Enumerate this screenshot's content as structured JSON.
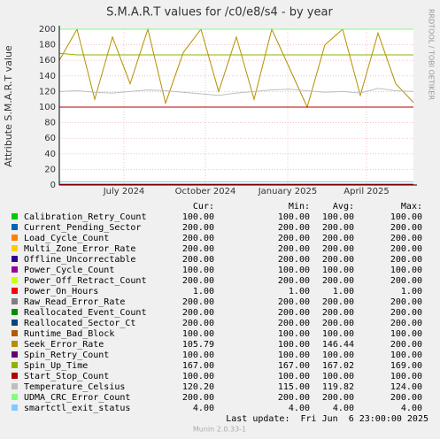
{
  "chart_data": {
    "type": "line",
    "title": "S.M.A.R.T values for /c0/e8/s4 - by year",
    "y_label": "Attribute S.M.A.R.T value",
    "side_text": "RRDTOOL / TOBI OETIKER",
    "x": [
      0,
      1,
      2,
      3,
      4,
      5,
      6,
      7,
      8,
      9,
      10,
      11,
      12,
      13,
      14,
      15,
      16,
      17,
      18,
      19,
      20
    ],
    "xlim": [
      0,
      20
    ],
    "xticks": [
      {
        "value": 3.65,
        "label": "July 2024"
      },
      {
        "value": 8.25,
        "label": "October 2024"
      },
      {
        "value": 12.9,
        "label": "January 2025"
      },
      {
        "value": 17.35,
        "label": "April 2025"
      }
    ],
    "ylim": [
      0,
      200
    ],
    "yticks": [
      0,
      20,
      40,
      60,
      80,
      100,
      120,
      140,
      160,
      180,
      200
    ],
    "grid": true,
    "series": [
      {
        "name": "Calibration_Retry_Count",
        "color": "#00CC00",
        "values": [
          100,
          100,
          100,
          100,
          100,
          100,
          100,
          100,
          100,
          100,
          100,
          100,
          100,
          100,
          100,
          100,
          100,
          100,
          100,
          100,
          100
        ]
      },
      {
        "name": "Current_Pending_Sector",
        "color": "#0066B3",
        "values": [
          200,
          200,
          200,
          200,
          200,
          200,
          200,
          200,
          200,
          200,
          200,
          200,
          200,
          200,
          200,
          200,
          200,
          200,
          200,
          200,
          200
        ]
      },
      {
        "name": "Load_Cycle_Count",
        "color": "#FF8000",
        "values": [
          200,
          200,
          200,
          200,
          200,
          200,
          200,
          200,
          200,
          200,
          200,
          200,
          200,
          200,
          200,
          200,
          200,
          200,
          200,
          200,
          200
        ]
      },
      {
        "name": "Multi_Zone_Error_Rate",
        "color": "#FFCC00",
        "values": [
          200,
          200,
          200,
          200,
          200,
          200,
          200,
          200,
          200,
          200,
          200,
          200,
          200,
          200,
          200,
          200,
          200,
          200,
          200,
          200,
          200
        ]
      },
      {
        "name": "Offline_Uncorrectable",
        "color": "#330099",
        "values": [
          200,
          200,
          200,
          200,
          200,
          200,
          200,
          200,
          200,
          200,
          200,
          200,
          200,
          200,
          200,
          200,
          200,
          200,
          200,
          200,
          200
        ]
      },
      {
        "name": "Power_Cycle_Count",
        "color": "#990099",
        "values": [
          100,
          100,
          100,
          100,
          100,
          100,
          100,
          100,
          100,
          100,
          100,
          100,
          100,
          100,
          100,
          100,
          100,
          100,
          100,
          100,
          100
        ]
      },
      {
        "name": "Power_Off_Retract_Count",
        "color": "#CCFF00",
        "values": [
          200,
          200,
          200,
          200,
          200,
          200,
          200,
          200,
          200,
          200,
          200,
          200,
          200,
          200,
          200,
          200,
          200,
          200,
          200,
          200,
          200
        ]
      },
      {
        "name": "Power_On_Hours",
        "color": "#FF0000",
        "values": [
          1,
          1,
          1,
          1,
          1,
          1,
          1,
          1,
          1,
          1,
          1,
          1,
          1,
          1,
          1,
          1,
          1,
          1,
          1,
          1,
          1
        ]
      },
      {
        "name": "Raw_Read_Error_Rate",
        "color": "#808080",
        "values": [
          200,
          200,
          200,
          200,
          200,
          200,
          200,
          200,
          200,
          200,
          200,
          200,
          200,
          200,
          200,
          200,
          200,
          200,
          200,
          200,
          200
        ]
      },
      {
        "name": "Reallocated_Event_Count",
        "color": "#008F00",
        "values": [
          200,
          200,
          200,
          200,
          200,
          200,
          200,
          200,
          200,
          200,
          200,
          200,
          200,
          200,
          200,
          200,
          200,
          200,
          200,
          200,
          200
        ]
      },
      {
        "name": "Reallocated_Sector_Ct",
        "color": "#00487D",
        "values": [
          200,
          200,
          200,
          200,
          200,
          200,
          200,
          200,
          200,
          200,
          200,
          200,
          200,
          200,
          200,
          200,
          200,
          200,
          200,
          200,
          200
        ]
      },
      {
        "name": "Runtime_Bad_Block",
        "color": "#B35A00",
        "values": [
          100,
          100,
          100,
          100,
          100,
          100,
          100,
          100,
          100,
          100,
          100,
          100,
          100,
          100,
          100,
          100,
          100,
          100,
          100,
          100,
          100
        ]
      },
      {
        "name": "Seek_Error_Rate",
        "color": "#B38F00",
        "values": [
          160,
          200,
          110,
          190,
          130,
          200,
          105,
          170,
          200,
          120,
          190,
          110,
          200,
          150,
          100,
          180,
          200,
          115,
          195,
          130,
          106
        ]
      },
      {
        "name": "Spin_Retry_Count",
        "color": "#6B006B",
        "values": [
          100,
          100,
          100,
          100,
          100,
          100,
          100,
          100,
          100,
          100,
          100,
          100,
          100,
          100,
          100,
          100,
          100,
          100,
          100,
          100,
          100
        ]
      },
      {
        "name": "Spin_Up_Time",
        "color": "#8FB300",
        "values": [
          169,
          167,
          167,
          167,
          167,
          167,
          167,
          167,
          167,
          167,
          167,
          167,
          167,
          167,
          167,
          167,
          167,
          167,
          167,
          167,
          167
        ]
      },
      {
        "name": "Start_Stop_Count",
        "color": "#B30000",
        "values": [
          100,
          100,
          100,
          100,
          100,
          100,
          100,
          100,
          100,
          100,
          100,
          100,
          100,
          100,
          100,
          100,
          100,
          100,
          100,
          100,
          100
        ]
      },
      {
        "name": "Temperature_Celsius",
        "color": "#BEBEBE",
        "values": [
          120,
          121,
          119,
          118,
          120,
          122,
          121,
          119,
          117,
          115,
          118,
          120,
          122,
          123,
          121,
          119,
          120,
          118,
          124,
          121,
          120
        ]
      },
      {
        "name": "UDMA_CRC_Error_Count",
        "color": "#80FF80",
        "values": [
          200,
          200,
          200,
          200,
          200,
          200,
          200,
          200,
          200,
          200,
          200,
          200,
          200,
          200,
          200,
          200,
          200,
          200,
          200,
          200,
          200
        ]
      },
      {
        "name": "smartctl_exit_status",
        "color": "#80C9FF",
        "values": [
          4,
          4,
          4,
          4,
          4,
          4,
          4,
          4,
          4,
          4,
          4,
          4,
          4,
          4,
          4,
          4,
          4,
          4,
          4,
          4,
          4
        ]
      }
    ],
    "legend_headers": [
      "Cur:",
      "Min:",
      "Avg:",
      "Max:"
    ],
    "legend_stats": [
      [
        "100.00",
        "100.00",
        "100.00",
        "100.00"
      ],
      [
        "200.00",
        "200.00",
        "200.00",
        "200.00"
      ],
      [
        "200.00",
        "200.00",
        "200.00",
        "200.00"
      ],
      [
        "200.00",
        "200.00",
        "200.00",
        "200.00"
      ],
      [
        "200.00",
        "200.00",
        "200.00",
        "200.00"
      ],
      [
        "100.00",
        "100.00",
        "100.00",
        "100.00"
      ],
      [
        "200.00",
        "200.00",
        "200.00",
        "200.00"
      ],
      [
        "1.00",
        "1.00",
        "1.00",
        "1.00"
      ],
      [
        "200.00",
        "200.00",
        "200.00",
        "200.00"
      ],
      [
        "200.00",
        "200.00",
        "200.00",
        "200.00"
      ],
      [
        "200.00",
        "200.00",
        "200.00",
        "200.00"
      ],
      [
        "100.00",
        "100.00",
        "100.00",
        "100.00"
      ],
      [
        "105.79",
        "100.00",
        "146.44",
        "200.00"
      ],
      [
        "100.00",
        "100.00",
        "100.00",
        "100.00"
      ],
      [
        "167.00",
        "167.00",
        "167.02",
        "169.00"
      ],
      [
        "100.00",
        "100.00",
        "100.00",
        "100.00"
      ],
      [
        "120.20",
        "115.00",
        "119.82",
        "124.00"
      ],
      [
        "200.00",
        "200.00",
        "200.00",
        "200.00"
      ],
      [
        "4.00",
        "4.00",
        "4.00",
        "4.00"
      ]
    ],
    "last_update": "Last update:  Fri Jun  6 23:00:00 2025",
    "footer": "Munin 2.0.33-1"
  }
}
